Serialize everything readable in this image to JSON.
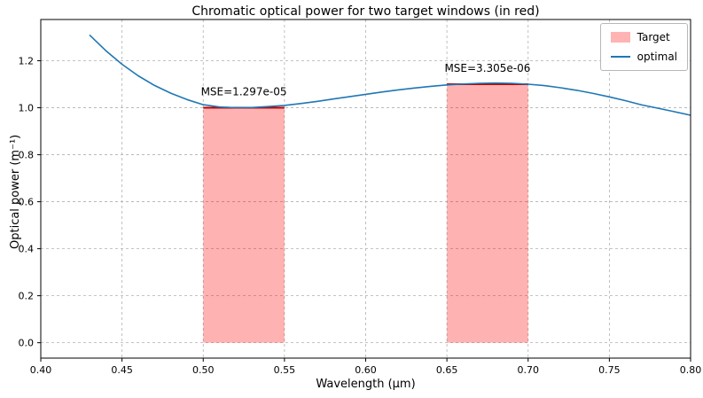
{
  "chart_data": {
    "type": "line",
    "title": "Chromatic optical power for two target windows (in red)",
    "xlabel": "Wavelength (μm)",
    "ylabel": "Optical power (m⁻¹)",
    "xlim": [
      0.4,
      0.8
    ],
    "ylim": [
      -0.0655,
      1.3755
    ],
    "grid": true,
    "legend_position": "upper right",
    "x_ticks": [
      0.4,
      0.45,
      0.5,
      0.55,
      0.6,
      0.65,
      0.7,
      0.75,
      0.8
    ],
    "x_tick_labels": [
      "0.40",
      "0.45",
      "0.50",
      "0.55",
      "0.60",
      "0.65",
      "0.70",
      "0.75",
      "0.80"
    ],
    "y_ticks": [
      0.0,
      0.2,
      0.4,
      0.6,
      0.8,
      1.0,
      1.2
    ],
    "y_tick_labels": [
      "0.0",
      "0.2",
      "0.4",
      "0.6",
      "0.8",
      "1.0",
      "1.2"
    ],
    "series": [
      {
        "name": "optimal",
        "color": "#1f77b4",
        "x": [
          0.43,
          0.44,
          0.45,
          0.46,
          0.47,
          0.48,
          0.49,
          0.5,
          0.51,
          0.52,
          0.53,
          0.54,
          0.55,
          0.56,
          0.57,
          0.58,
          0.59,
          0.6,
          0.61,
          0.62,
          0.63,
          0.64,
          0.65,
          0.66,
          0.67,
          0.68,
          0.69,
          0.7,
          0.71,
          0.72,
          0.73,
          0.74,
          0.75,
          0.76,
          0.77,
          0.78,
          0.79,
          0.8
        ],
        "y": [
          1.31,
          1.243,
          1.185,
          1.136,
          1.095,
          1.062,
          1.035,
          1.013,
          1.003,
          1.0,
          1.001,
          1.005,
          1.01,
          1.018,
          1.027,
          1.037,
          1.047,
          1.057,
          1.067,
          1.076,
          1.084,
          1.091,
          1.097,
          1.101,
          1.104,
          1.105,
          1.104,
          1.1,
          1.094,
          1.085,
          1.074,
          1.061,
          1.046,
          1.03,
          1.012,
          0.998,
          0.983,
          0.968
        ]
      }
    ],
    "targets": [
      {
        "x_start": 0.5,
        "x_end": 0.55,
        "power": 1.0,
        "mse_label": "MSE=1.297e-05"
      },
      {
        "x_start": 0.65,
        "x_end": 0.7,
        "power": 1.1,
        "mse_label": "MSE=3.305e-06"
      }
    ],
    "target_fill_color": "#ff0000",
    "target_fill_opacity": 0.3,
    "target_edge_color": "#c00000",
    "legend": [
      {
        "label": "Target",
        "swatch": "patch",
        "color": "#ffb3b3"
      },
      {
        "label": "optimal",
        "swatch": "line",
        "color": "#1f77b4"
      }
    ]
  }
}
